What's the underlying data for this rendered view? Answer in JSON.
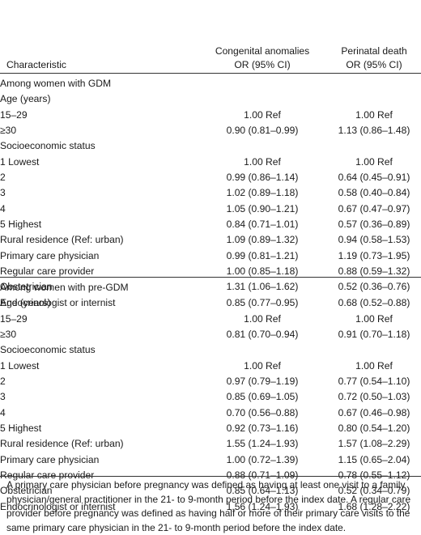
{
  "header": {
    "characteristic": "Characteristic",
    "col1_line1": "Congenital anomalies",
    "col1_line2": "OR (95% CI)",
    "col2_line1": "Perinatal death",
    "col2_line2": "OR (95% CI)"
  },
  "gdm": {
    "title": "Among women with GDM",
    "rows": [
      {
        "label": "Age (years)",
        "level": 1,
        "c1": "",
        "c2": ""
      },
      {
        "label": "15–29",
        "level": 2,
        "c1": "1.00 Ref",
        "c2": "1.00 Ref"
      },
      {
        "label": "≥30",
        "level": 2,
        "c1": "0.90 (0.81–0.99)",
        "c2": "1.13 (0.86–1.48)"
      },
      {
        "label": "Socioeconomic status",
        "level": 1,
        "c1": "",
        "c2": ""
      },
      {
        "label": "1 Lowest",
        "level": 2,
        "c1": "1.00 Ref",
        "c2": "1.00 Ref"
      },
      {
        "label": "2",
        "level": 2,
        "c1": "0.99 (0.86–1.14)",
        "c2": "0.64 (0.45–0.91)"
      },
      {
        "label": "3",
        "level": 2,
        "c1": "1.02 (0.89–1.18)",
        "c2": "0.58 (0.40–0.84)"
      },
      {
        "label": "4",
        "level": 2,
        "c1": "1.05 (0.90–1.21)",
        "c2": "0.67 (0.47–0.97)"
      },
      {
        "label": "5 Highest",
        "level": 2,
        "c1": "0.84 (0.71–1.01)",
        "c2": "0.57 (0.36–0.89)"
      },
      {
        "label": "Rural residence (Ref: urban)",
        "level": 1,
        "c1": "1.09 (0.89–1.32)",
        "c2": "0.94 (0.58–1.53)"
      },
      {
        "label": "Primary care physician",
        "level": 1,
        "c1": "0.99 (0.81–1.21)",
        "c2": "1.19 (0.73–1.95)"
      },
      {
        "label": "Regular care provider",
        "level": 1,
        "c1": "1.00 (0.85–1.18)",
        "c2": "0.88 (0.59–1.32)"
      },
      {
        "label": "Obstetrician",
        "level": 1,
        "c1": "1.31 (1.06–1.62)",
        "c2": "0.52 (0.36–0.76)"
      },
      {
        "label": "Endocrinologist or internist",
        "level": 1,
        "c1": "0.85 (0.77–0.95)",
        "c2": "0.68 (0.52–0.88)"
      }
    ]
  },
  "pregdm": {
    "title": "Among women with pre-GDM",
    "rows": [
      {
        "label": "Age (years)",
        "level": 1,
        "c1": "",
        "c2": ""
      },
      {
        "label": "15–29",
        "level": 2,
        "c1": "1.00 Ref",
        "c2": "1.00 Ref"
      },
      {
        "label": "≥30",
        "level": 2,
        "c1": "0.81 (0.70–0.94)",
        "c2": "0.91 (0.70–1.18)"
      },
      {
        "label": "Socioeconomic status",
        "level": 1,
        "c1": "",
        "c2": ""
      },
      {
        "label": "1 Lowest",
        "level": 2,
        "c1": "1.00 Ref",
        "c2": "1.00 Ref"
      },
      {
        "label": "2",
        "level": 2,
        "c1": "0.97 (0.79–1.19)",
        "c2": "0.77 (0.54–1.10)"
      },
      {
        "label": "3",
        "level": 2,
        "c1": "0.85 (0.69–1.05)",
        "c2": "0.72 (0.50–1.03)"
      },
      {
        "label": "4",
        "level": 2,
        "c1": "0.70 (0.56–0.88)",
        "c2": "0.67 (0.46–0.98)"
      },
      {
        "label": "5 Highest",
        "level": 2,
        "c1": "0.92 (0.73–1.16)",
        "c2": "0.80 (0.54–1.20)"
      },
      {
        "label": "Rural residence (Ref: urban)",
        "level": 1,
        "c1": "1.55 (1.24–1.93)",
        "c2": "1.57 (1.08–2.29)"
      },
      {
        "label": "Primary care physician",
        "level": 1,
        "c1": "1.00 (0.72–1.39)",
        "c2": "1.15 (0.65–2.04)"
      },
      {
        "label": "Regular care provider",
        "level": 1,
        "c1": "0.88 (0.71–1.09)",
        "c2": "0.78 (0.55–1.12)"
      },
      {
        "label": "Obstetrician",
        "level": 1,
        "c1": "0.85 (0.64–1.13)",
        "c2": "0.52 (0.34–0.79)"
      },
      {
        "label": "Endocrinologist or internist",
        "level": 1,
        "c1": "1.56 (1.24–1.93)",
        "c2": "1.68 (1.28–2.22)"
      }
    ]
  },
  "footnote": "A primary care physician before pregnancy was defined as having at least one visit to a family physician/general practitioner in the 21- to 9-month period before the index date. A regular care provider before pregnancy was defined as having half or more of their primary care visits to the same primary care physician in the 21- to 9-month period before the index date."
}
